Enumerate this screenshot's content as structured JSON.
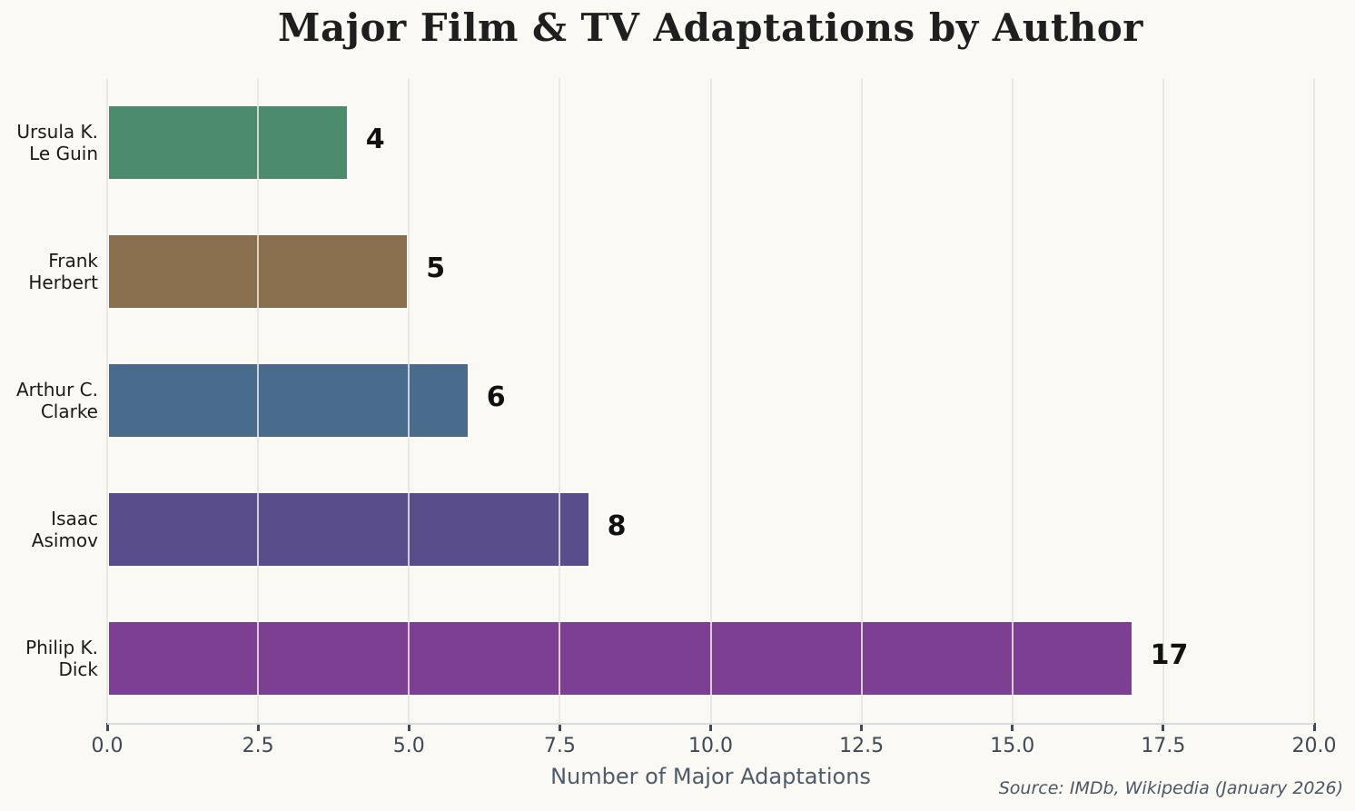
{
  "chart_data": {
    "type": "bar",
    "orientation": "horizontal",
    "title": "Major Film & TV Adaptations by Author",
    "xlabel": "Number of Major Adaptations",
    "ylabel": "",
    "categories": [
      "Ursula K.\nLe Guin",
      "Frank\nHerbert",
      "Arthur C.\nClarke",
      "Isaac\nAsimov",
      "Philip K.\nDick"
    ],
    "values": [
      4,
      5,
      6,
      8,
      17
    ],
    "value_labels": [
      "4",
      "5",
      "6",
      "8",
      "17"
    ],
    "bar_colors": [
      "#4d8b6d",
      "#8a6f4e",
      "#4a6c8c",
      "#594d8c",
      "#7d3f91"
    ],
    "xlim": [
      0,
      20
    ],
    "xticks": [
      0,
      2.5,
      5,
      7.5,
      10,
      12.5,
      15,
      17.5,
      20
    ],
    "xtick_labels": [
      "0.0",
      "2.5",
      "5.0",
      "7.5",
      "10.0",
      "12.5",
      "15.0",
      "17.5",
      "20.0"
    ],
    "grid": "vertical-overlay",
    "legend": "none",
    "source_note": "Source: IMDb, Wikipedia (January 2026)",
    "colors": {
      "background": "#fbf9f3",
      "title_text": "#1f1f1f",
      "category_text": "#1a1a1a",
      "value_text": "#111111",
      "tick_text": "#3e4a57",
      "xlabel_text": "#4d5c6b",
      "source_text": "#4a5765",
      "gridline": "rgba(231,229,224,0.85)",
      "spine": "#d8dce1",
      "tick_mark": "#3e4a57",
      "bar_edge": "#ffffff"
    }
  }
}
